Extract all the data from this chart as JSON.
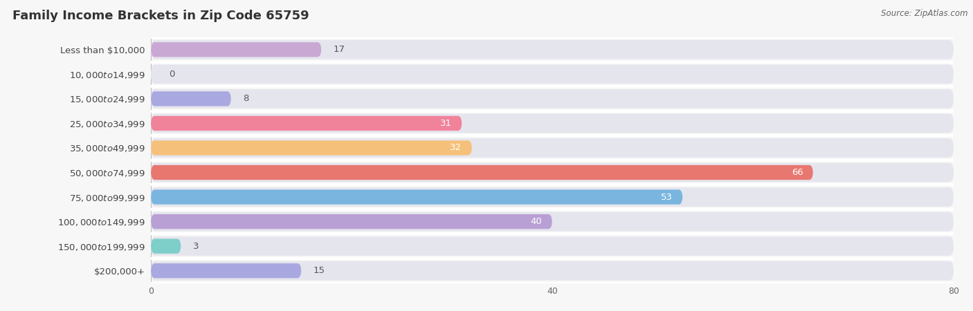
{
  "title": "Family Income Brackets in Zip Code 65759",
  "source": "Source: ZipAtlas.com",
  "categories": [
    "Less than $10,000",
    "$10,000 to $14,999",
    "$15,000 to $24,999",
    "$25,000 to $34,999",
    "$35,000 to $49,999",
    "$50,000 to $74,999",
    "$75,000 to $99,999",
    "$100,000 to $149,999",
    "$150,000 to $199,999",
    "$200,000+"
  ],
  "values": [
    17,
    0,
    8,
    31,
    32,
    66,
    53,
    40,
    3,
    15
  ],
  "bar_colors": [
    "#c9a8d4",
    "#7ececa",
    "#a9a8e0",
    "#f0829a",
    "#f5c07a",
    "#e87770",
    "#7ab5e0",
    "#b89fd4",
    "#7ececa",
    "#a9a8e0"
  ],
  "bg_color": "#f7f7f7",
  "bar_bg_color": "#e5e5ed",
  "xlim": [
    0,
    80
  ],
  "xticks": [
    0,
    40,
    80
  ],
  "title_fontsize": 13,
  "label_fontsize": 9.5,
  "value_fontsize": 9.5
}
